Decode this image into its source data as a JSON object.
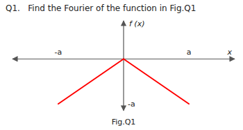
{
  "chart_data": {
    "type": "line",
    "title": "Q1.   Find the Fourier of the function in Fig.Q1",
    "x_label": "x",
    "y_label": "f (x)",
    "series": [
      {
        "x": [
          -1.0,
          0.0
        ],
        "values": [
          -1.0,
          0.0
        ],
        "color": "#ff0000"
      },
      {
        "x": [
          0.0,
          1.0
        ],
        "values": [
          0.0,
          -1.0
        ],
        "color": "#ff0000"
      }
    ],
    "xlim": [
      -1.7,
      1.7
    ],
    "ylim": [
      -1.15,
      0.85
    ],
    "tick_labels": false,
    "annotations": [
      {
        "text": "-a",
        "x": -1.0
      },
      {
        "text": "a",
        "x": 1.0
      },
      {
        "text": "-a",
        "y": -1.0
      },
      {
        "text": "Fig.Q1"
      }
    ]
  }
}
